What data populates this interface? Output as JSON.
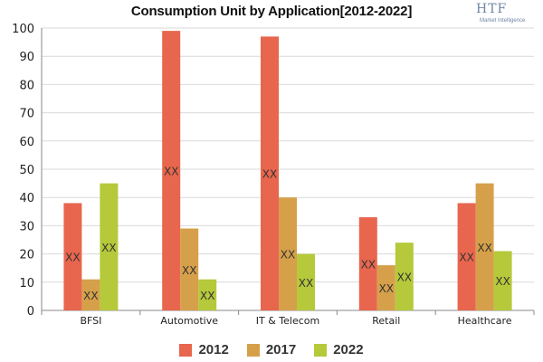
{
  "title": "Consumption Unit by  Application[2012-2022]",
  "logo": {
    "text": "HTF",
    "subtext": "Market Intelligence"
  },
  "colors": {
    "2012": "#e8664e",
    "2017": "#d6a04a",
    "2022": "#b5c93a"
  },
  "chart_data": {
    "type": "bar",
    "title": "Consumption Unit by  Application[2012-2022]",
    "categories": [
      "BFSI",
      "Automotive",
      "IT & Telecom",
      "Retail",
      "Healthcare"
    ],
    "series": [
      {
        "name": "2012",
        "values": [
          38,
          99,
          97,
          33,
          38
        ]
      },
      {
        "name": "2017",
        "values": [
          11,
          29,
          40,
          16,
          45
        ]
      },
      {
        "name": "2022",
        "values": [
          45,
          11,
          20,
          24,
          21
        ]
      }
    ],
    "bar_label": "XX",
    "ylim": [
      0,
      100
    ],
    "yticks": [
      0,
      10,
      20,
      30,
      40,
      50,
      60,
      70,
      80,
      90,
      100
    ],
    "grid": true,
    "legend": "bottom"
  }
}
